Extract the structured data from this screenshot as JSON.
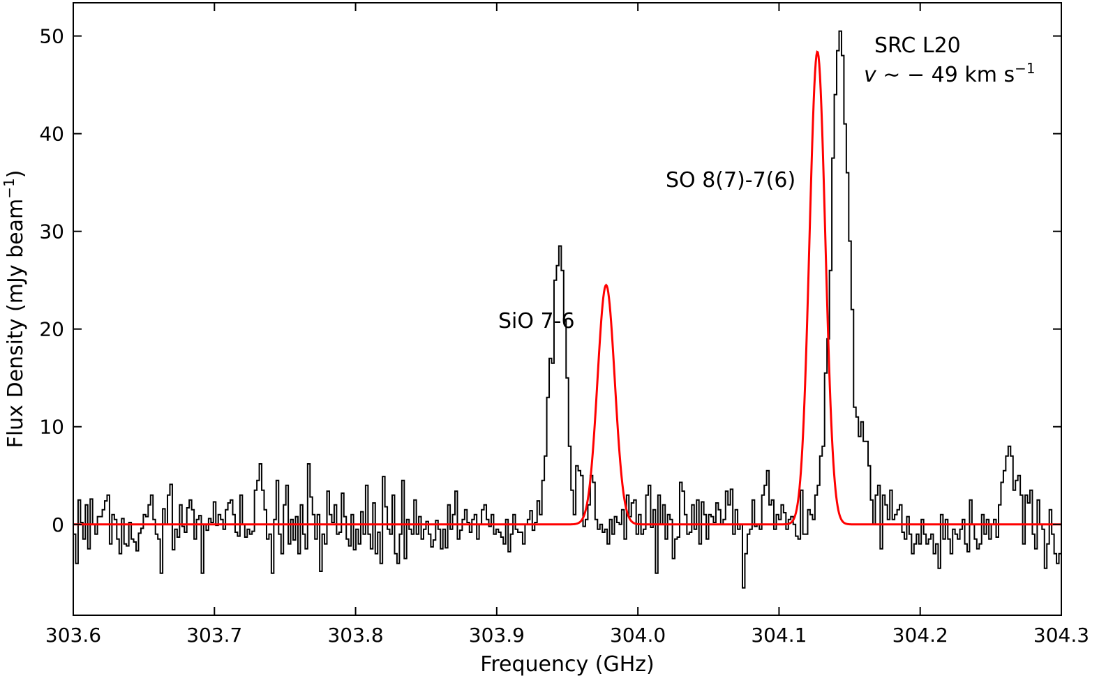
{
  "chart_data": {
    "type": "line",
    "xlabel": "Frequency (GHz)",
    "ylabel": "Flux Density (mJy beam",
    "ylabel_sup": "−1",
    "xlim": [
      303.6,
      304.3
    ],
    "ylim": [
      -9.3,
      53.4
    ],
    "x_ticks": [
      303.6,
      303.7,
      303.8,
      303.9,
      304.0,
      304.1,
      304.2,
      304.3
    ],
    "x_tick_labels": [
      "303.6",
      "303.7",
      "303.8",
      "303.9",
      "304.0",
      "304.1",
      "304.2",
      "304.3"
    ],
    "y_ticks": [
      0,
      10,
      20,
      30,
      40,
      50
    ],
    "y_tick_labels": [
      "0",
      "10",
      "20",
      "30",
      "40",
      "50"
    ],
    "grid": false,
    "legend": "none",
    "annotations": {
      "source": "SRC L20",
      "velocity": {
        "v": "v",
        "rest": " ∼ − 49 km s",
        "sup": "−1"
      },
      "line1": "SiO 7-6",
      "line2": "SO 8(7)-7(6)"
    },
    "series": [
      {
        "kind": "step",
        "color": "#000000",
        "x_start": 303.6,
        "x_step": 0.0025,
        "y": [
          -1.0,
          -4.0,
          2.5,
          0.2,
          -1.5,
          2.0,
          -2.5,
          2.6,
          0.0,
          -1.0,
          0.8,
          0.8,
          1.5,
          2.4,
          3.0,
          -2.0,
          1.0,
          0.5,
          -1.5,
          -3.0,
          0.6,
          -2.0,
          -2.2,
          0.2,
          -1.5,
          -1.8,
          -2.7,
          -0.9,
          -0.4,
          1.0,
          0.8,
          2.0,
          3.0,
          0.5,
          -1.0,
          -1.5,
          -5.0,
          1.6,
          0.0,
          3.0,
          4.1,
          -2.6,
          -0.5,
          -1.3,
          2.0,
          -0.2,
          -0.8,
          1.7,
          2.5,
          1.5,
          -1.5,
          0.5,
          0.9,
          -5.0,
          0.0,
          -0.6,
          0.6,
          0.2,
          2.3,
          -0.1,
          1.0,
          0.5,
          -0.5,
          1.5,
          2.2,
          2.5,
          1.0,
          -0.8,
          -1.2,
          3.0,
          0.0,
          -1.3,
          -0.5,
          -1.0,
          -0.7,
          3.5,
          4.5,
          6.2,
          3.5,
          1.5,
          -1.5,
          -1.0,
          -5.0,
          0.5,
          4.5,
          -1.0,
          -3.0,
          2.0,
          4.0,
          -2.0,
          0.5,
          -1.6,
          0.8,
          -3.0,
          2.0,
          -1.0,
          -2.5,
          6.2,
          2.8,
          1.0,
          -1.5,
          1.0,
          -4.8,
          -1.0,
          -2.0,
          3.4,
          1.0,
          0.2,
          2.0,
          -1.0,
          -0.8,
          3.2,
          0.8,
          -1.5,
          -2.2,
          1.0,
          -2.6,
          -0.5,
          -2.0,
          1.3,
          -1.0,
          4.0,
          -1.0,
          -2.5,
          2.2,
          -3.0,
          -0.8,
          -4.0,
          4.9,
          1.8,
          -0.5,
          -1.0,
          3.0,
          -3.0,
          -4.0,
          -1.0,
          4.5,
          -3.5,
          0.5,
          -0.5,
          -1.0,
          2.5,
          -1.0,
          0.8,
          -1.5,
          -0.5,
          0.3,
          -1.0,
          -2.3,
          -1.6,
          0.4,
          -0.5,
          -2.5,
          -0.5,
          -2.4,
          2.0,
          -0.5,
          1.0,
          3.4,
          -1.5,
          -0.6,
          0.5,
          1.5,
          0.2,
          -0.8,
          0.5,
          1.0,
          -1.5,
          0.0,
          1.5,
          2.0,
          0.5,
          -0.2,
          1.0,
          -1.0,
          -0.5,
          -0.8,
          -1.3,
          -2.0,
          0.5,
          -2.8,
          -1.0,
          1.0,
          -0.5,
          -0.8,
          -0.8,
          -2.0,
          0.0,
          0.5,
          1.4,
          -0.6,
          0.2,
          2.4,
          1.0,
          4.5,
          7.0,
          13.0,
          17.0,
          16.5,
          25.0,
          26.5,
          28.5,
          26.0,
          21.0,
          15.0,
          8.0,
          3.5,
          1.0,
          6.0,
          5.5,
          5.0,
          -0.2,
          0.5,
          2.0,
          5.0,
          4.3,
          0.5,
          -0.5,
          0.0,
          -0.8,
          -0.5,
          -2.0,
          0.5,
          -1.0,
          0.8,
          0.2,
          0.0,
          1.5,
          -1.5,
          3.0,
          0.8,
          2.2,
          2.5,
          -1.0,
          1.0,
          -1.0,
          -0.5,
          3.0,
          4.0,
          -0.3,
          1.5,
          -5.0,
          3.0,
          0.0,
          2.0,
          -1.5,
          1.0,
          0.5,
          -3.5,
          -1.5,
          -1.3,
          4.3,
          3.4,
          1.0,
          -1.0,
          -0.8,
          2.0,
          -0.5,
          2.5,
          -2.0,
          2.3,
          1.0,
          -1.5,
          1.0,
          0.8,
          0.2,
          2.2,
          1.5,
          0.0,
          0.5,
          3.4,
          2.0,
          3.6,
          -1.0,
          1.5,
          -0.5,
          0.0,
          -6.5,
          -3.0,
          -1.0,
          -0.5,
          2.5,
          -0.2,
          0.0,
          -0.5,
          3.0,
          4.0,
          5.5,
          2.0,
          2.5,
          -0.5,
          1.0,
          0.5,
          2.0,
          1.2,
          -0.5,
          0.5,
          0.8,
          0.0,
          -1.2,
          -1.5,
          3.5,
          -1.0,
          -1.0,
          1.5,
          1.0,
          0.5,
          3.0,
          4.0,
          7.0,
          8.0,
          15.5,
          19.0,
          26.0,
          37.5,
          44.0,
          48.5,
          50.5,
          48.0,
          41.0,
          36.0,
          29.0,
          22.0,
          12.0,
          11.0,
          9.0,
          10.5,
          8.5,
          8.5,
          6.0,
          2.5,
          0.0,
          3.0,
          4.0,
          -2.5,
          3.0,
          2.0,
          0.5,
          3.5,
          0.5,
          1.0,
          1.5,
          2.0,
          -0.8,
          -1.5,
          0.8,
          -1.0,
          -3.0,
          -2.0,
          -1.0,
          -2.0,
          0.5,
          -1.0,
          -2.0,
          -1.5,
          -1.0,
          -3.0,
          -2.0,
          -4.5,
          1.0,
          -1.5,
          0.5,
          -1.5,
          -3.0,
          -0.5,
          -1.0,
          -1.5,
          -0.5,
          0.5,
          -2.0,
          -2.8,
          2.5,
          0.0,
          -1.5,
          -2.5,
          -2.0,
          1.0,
          -1.0,
          0.5,
          -1.5,
          0.0,
          0.5,
          -1.3,
          2.0,
          4.3,
          5.5,
          7.0,
          8.0,
          7.0,
          3.5,
          4.5,
          5.0,
          3.0,
          -2.0,
          3.0,
          2.2,
          3.5,
          -1.0,
          -2.5,
          2.5,
          0.0,
          -0.5,
          -4.5,
          -2.0,
          1.5,
          -1.0,
          -3.0,
          -4.0,
          -3.0
        ]
      },
      {
        "kind": "gaussian-fit",
        "color": "#ff0000",
        "components": [
          {
            "amp": 24.5,
            "center": 303.9775,
            "sigma": 0.0061
          },
          {
            "amp": 48.4,
            "center": 304.1272,
            "sigma": 0.0056
          }
        ]
      }
    ]
  }
}
